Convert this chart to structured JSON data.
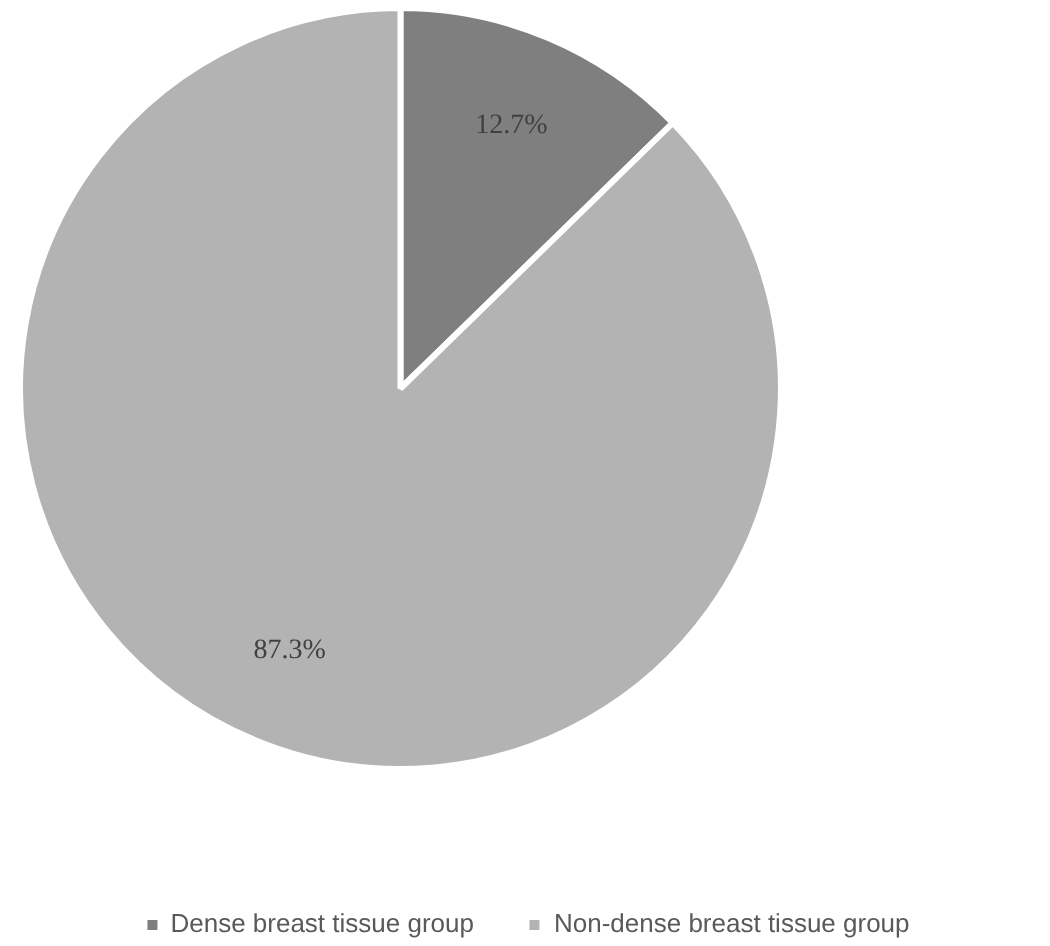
{
  "chart_data": {
    "type": "pie",
    "categories": [
      "Dense breast tissue group",
      "Non-dense breast tissue group"
    ],
    "values": [
      12.7,
      87.3
    ],
    "colors": [
      "#7f7f7f",
      "#b3b3b3"
    ],
    "value_labels": [
      "12.7%",
      "87.3%"
    ],
    "legend": "bottom"
  }
}
